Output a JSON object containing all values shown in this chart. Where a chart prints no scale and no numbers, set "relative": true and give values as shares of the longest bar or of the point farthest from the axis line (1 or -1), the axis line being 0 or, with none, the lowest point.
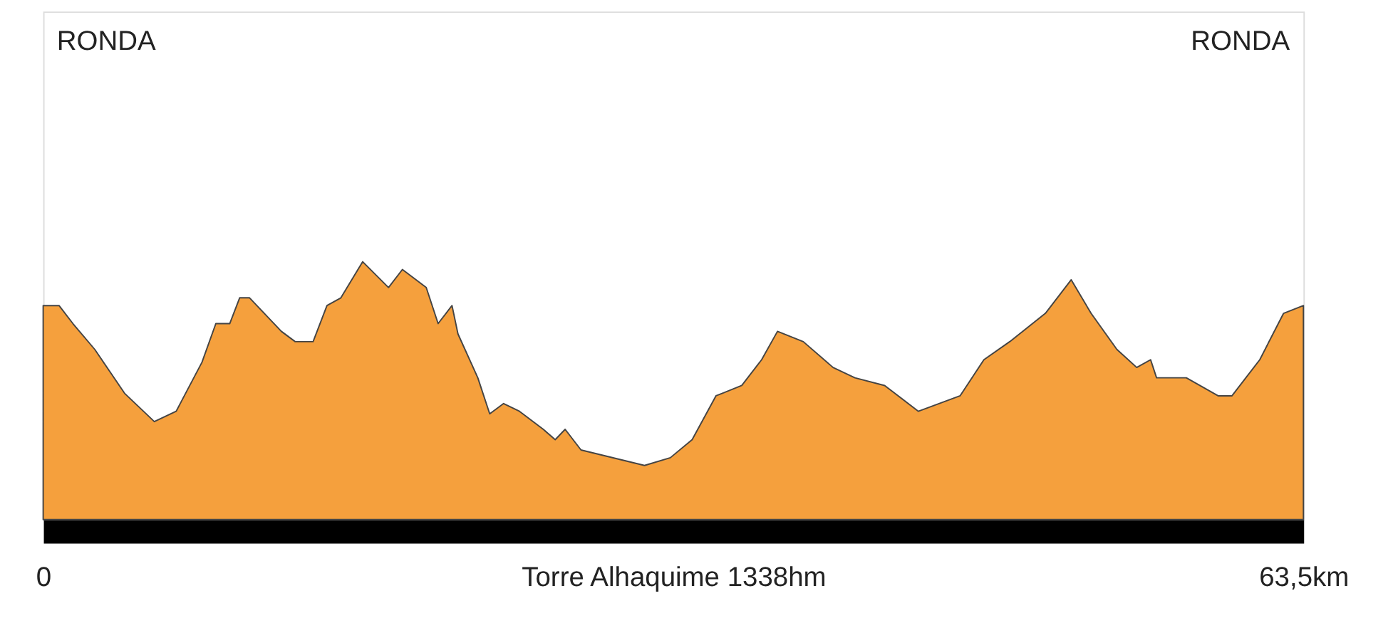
{
  "chart_data": {
    "type": "area",
    "relative": true,
    "xlabel": "Torre Alhaquime 1338hm",
    "x": [
      0,
      0.8,
      1.5,
      2.6,
      4.1,
      5.6,
      6.7,
      8.0,
      8.7,
      9.4,
      9.9,
      10.4,
      12.0,
      12.7,
      13.6,
      14.3,
      15.0,
      16.1,
      17.4,
      18.1,
      19.3,
      19.9,
      20.6,
      20.9,
      21.9,
      22.5,
      23.2,
      24.0,
      25.2,
      25.8,
      26.3,
      27.1,
      30.3,
      31.6,
      32.7,
      33.9,
      35.2,
      36.2,
      37.0,
      38.3,
      39.8,
      40.9,
      42.4,
      44.1,
      46.2,
      47.4,
      48.7,
      50.5,
      51.8,
      52.8,
      54.1,
      55.1,
      55.8,
      56.1,
      57.6,
      59.2,
      59.9,
      61.3,
      62.5,
      63.5
    ],
    "series": [
      {
        "color": "#f5a03d",
        "values": [
          0.83,
          0.83,
          0.76,
          0.66,
          0.49,
          0.38,
          0.42,
          0.61,
          0.76,
          0.76,
          0.86,
          0.86,
          0.73,
          0.69,
          0.69,
          0.83,
          0.86,
          1,
          0.9,
          0.97,
          0.9,
          0.76,
          0.83,
          0.72,
          0.55,
          0.41,
          0.45,
          0.42,
          0.35,
          0.31,
          0.35,
          0.27,
          0.21,
          0.24,
          0.31,
          0.48,
          0.52,
          0.62,
          0.73,
          0.69,
          0.59,
          0.55,
          0.52,
          0.42,
          0.48,
          0.62,
          0.69,
          0.8,
          0.93,
          0.8,
          0.66,
          0.59,
          0.62,
          0.55,
          0.55,
          0.48,
          0.48,
          0.62,
          0.8,
          0.83
        ]
      }
    ],
    "xlim": [
      0,
      63.5
    ],
    "xticks": [
      {
        "value": 0,
        "label": "0"
      },
      {
        "value": 63.5,
        "label": "63,5km"
      }
    ],
    "annotations": [
      "RONDA",
      "RONDA"
    ]
  }
}
